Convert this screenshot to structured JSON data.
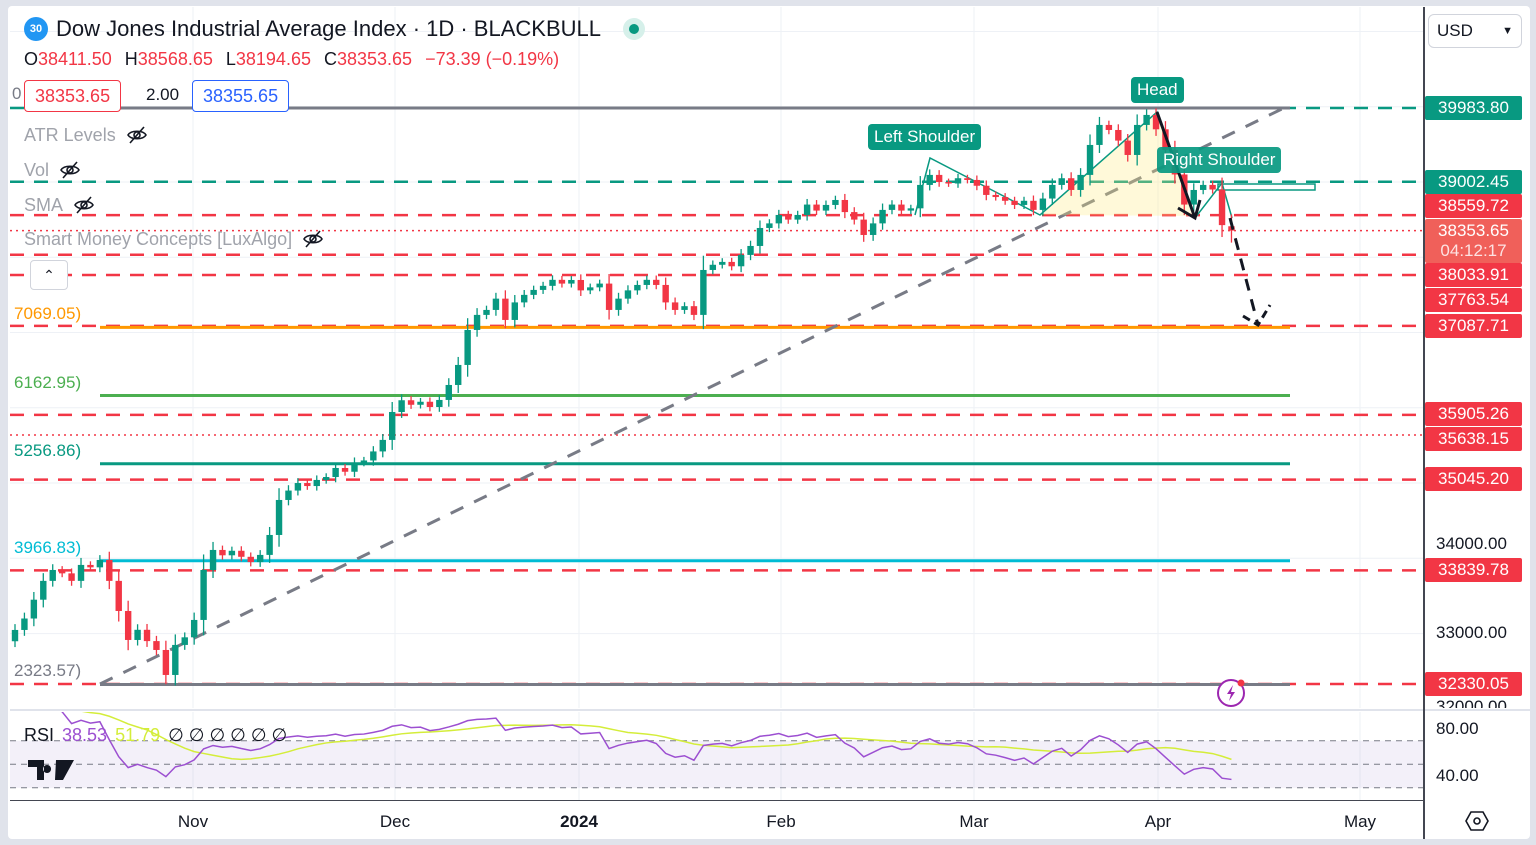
{
  "header": {
    "symbol_badge": "30",
    "title": "Dow Jones Industrial Average Index · 1D · BLACKBULL",
    "ohlc": {
      "o_label": "O",
      "o": "38411.50",
      "h_label": "H",
      "h": "38568.65",
      "l_label": "L",
      "l": "38194.65",
      "c_label": "C",
      "c": "38353.65",
      "change": "−73.39 (−0.19%)"
    },
    "cut_prefix": "0",
    "sell_price": "38353.65",
    "spread": "2.00",
    "buy_price": "38355.65"
  },
  "indicators": [
    {
      "label": "ATR Levels",
      "icon": "eye-off-icon"
    },
    {
      "label": "Vol",
      "icon": "eye-off-icon"
    },
    {
      "label": "SMA",
      "icon": "eye-off-icon"
    },
    {
      "label": "Smart Money Concepts [LuxAlgo]",
      "icon": "eye-off-icon"
    }
  ],
  "currency": "USD",
  "price_labels": [
    {
      "text": "39983.80",
      "color": "#089981"
    },
    {
      "text": "39002.45",
      "color": "#089981"
    },
    {
      "text": "38559.72",
      "color": "#f23645"
    },
    {
      "text": "38353.65",
      "sub": "04:12:17",
      "color": "#f0605a"
    },
    {
      "text": "38033.91",
      "color": "#f23645"
    },
    {
      "text": "37763.54",
      "color": "#f23645"
    },
    {
      "text": "37087.71",
      "color": "#f23645"
    },
    {
      "text": "35905.26",
      "color": "#f23645"
    },
    {
      "text": "35638.15",
      "color": "#f23645"
    },
    {
      "text": "35045.20",
      "color": "#f23645"
    },
    {
      "text": "33839.78",
      "color": "#f23645"
    },
    {
      "text": "32330.05",
      "color": "#f23645"
    }
  ],
  "price_ticks": [
    "34000.00",
    "33000.00",
    "32000.00"
  ],
  "time_axis": [
    "Nov",
    "Dec",
    "2024",
    "Feb",
    "Mar",
    "Apr",
    "May"
  ],
  "annotations": {
    "left_shoulder": "Left Shoulder",
    "head": "Head",
    "right_shoulder": "Right Shoulder"
  },
  "fib_labels": [
    {
      "text": "7069.05)",
      "price": 37069.05,
      "color": "#ff9800"
    },
    {
      "text": "6162.95)",
      "price": 36162.95,
      "color": "#4caf50"
    },
    {
      "text": "5256.86)",
      "price": 35256.86,
      "color": "#089981"
    },
    {
      "text": "3966.83)",
      "price": 33966.83,
      "color": "#00bcd4"
    },
    {
      "text": "2323.57)",
      "price": 32323.57,
      "color": "#787b86"
    }
  ],
  "rsi": {
    "label": "RSI",
    "value": "38.53",
    "ma_value": "51.79",
    "extra": "∅ ∅ ∅ ∅ ∅ ∅",
    "ticks": [
      "80.00",
      "40.00"
    ],
    "value_color": "#9c4fd1",
    "ma_color": "#d4ed3a"
  },
  "chart_data": {
    "type": "candlestick",
    "title": "Dow Jones Industrial Average Index · 1D · BLACKBULL",
    "x_ticks": [
      "Nov",
      "Dec",
      "2024",
      "Feb",
      "Mar",
      "Apr",
      "May"
    ],
    "ylim": [
      32011,
      41325
    ],
    "grid": true,
    "up_color": "#089981",
    "down_color": "#f23645",
    "closes": [
      33048,
      33200,
      33450,
      33700,
      33845,
      33800,
      33700,
      33912,
      33880,
      33978,
      33700,
      33300,
      32915,
      33050,
      32900,
      32782,
      32450,
      32849,
      32950,
      33181,
      33845,
      34111,
      34040,
      34100,
      34020,
      33950,
      34045,
      34310,
      34775,
      34900,
      35000,
      34960,
      35041,
      35080,
      35200,
      35150,
      35270,
      35300,
      35420,
      35573,
      35944,
      36100,
      36040,
      36080,
      36010,
      36104,
      36303,
      36569,
      37034,
      37234,
      37300,
      37450,
      37167,
      37400,
      37500,
      37566,
      37620,
      37700,
      37650,
      37698,
      37560,
      37600,
      37650,
      37300,
      37450,
      37560,
      37632,
      37700,
      37632,
      37400,
      37300,
      37350,
      37234,
      37831,
      37900,
      37938,
      37880,
      38031,
      38150,
      38389,
      38450,
      38562,
      38500,
      38562,
      38700,
      38620,
      38695,
      38761,
      38600,
      38500,
      38296,
      38450,
      38629,
      38700,
      38620,
      38650,
      38961,
      39094,
      39000,
      38980,
      39050,
      39027,
      38950,
      38828,
      38800,
      38750,
      38695,
      38750,
      38629,
      38780,
      38961,
      39050,
      38894,
      39094,
      39492,
      39758,
      39691,
      39550,
      39359,
      39758,
      39891,
      39700,
      39426,
      39100,
      38700,
      38894,
      38961,
      38900,
      38427
    ],
    "last_candle": {
      "open": 38411.5,
      "high": 38568.65,
      "low": 38194.65,
      "close": 38353.65
    },
    "levels": [
      {
        "price": 39983.8,
        "color": "#089981",
        "style": "dashed"
      },
      {
        "price": 39002.45,
        "color": "#089981",
        "style": "dashed"
      },
      {
        "price": 38559.72,
        "color": "#f23645",
        "style": "dashed"
      },
      {
        "price": 38353.65,
        "color": "#f23645",
        "style": "dotted"
      },
      {
        "price": 38033.91,
        "color": "#f23645",
        "style": "dashed"
      },
      {
        "price": 37763.54,
        "color": "#f23645",
        "style": "dashed"
      },
      {
        "price": 37087.71,
        "color": "#f23645",
        "style": "dashed"
      },
      {
        "price": 35905.26,
        "color": "#f23645",
        "style": "dashed"
      },
      {
        "price": 35638.15,
        "color": "#f23645",
        "style": "dotted"
      },
      {
        "price": 35045.2,
        "color": "#f23645",
        "style": "dashed"
      },
      {
        "price": 33839.78,
        "color": "#f23645",
        "style": "dashed"
      },
      {
        "price": 32330.05,
        "color": "#f23645",
        "style": "dashed"
      }
    ],
    "fib_levels": [
      {
        "price": 39983.8,
        "color": "#787b86"
      },
      {
        "price": 37069.05,
        "color": "#ff9800"
      },
      {
        "price": 36162.95,
        "color": "#4caf50"
      },
      {
        "price": 35256.86,
        "color": "#089981"
      },
      {
        "price": 33966.83,
        "color": "#00bcd4"
      },
      {
        "price": 32323.57,
        "color": "#787b86"
      }
    ],
    "pattern": "Head and Shoulders",
    "rsi_range": [
      19.6,
      94.5
    ],
    "rsi_bands": [
      70,
      50,
      30
    ]
  }
}
